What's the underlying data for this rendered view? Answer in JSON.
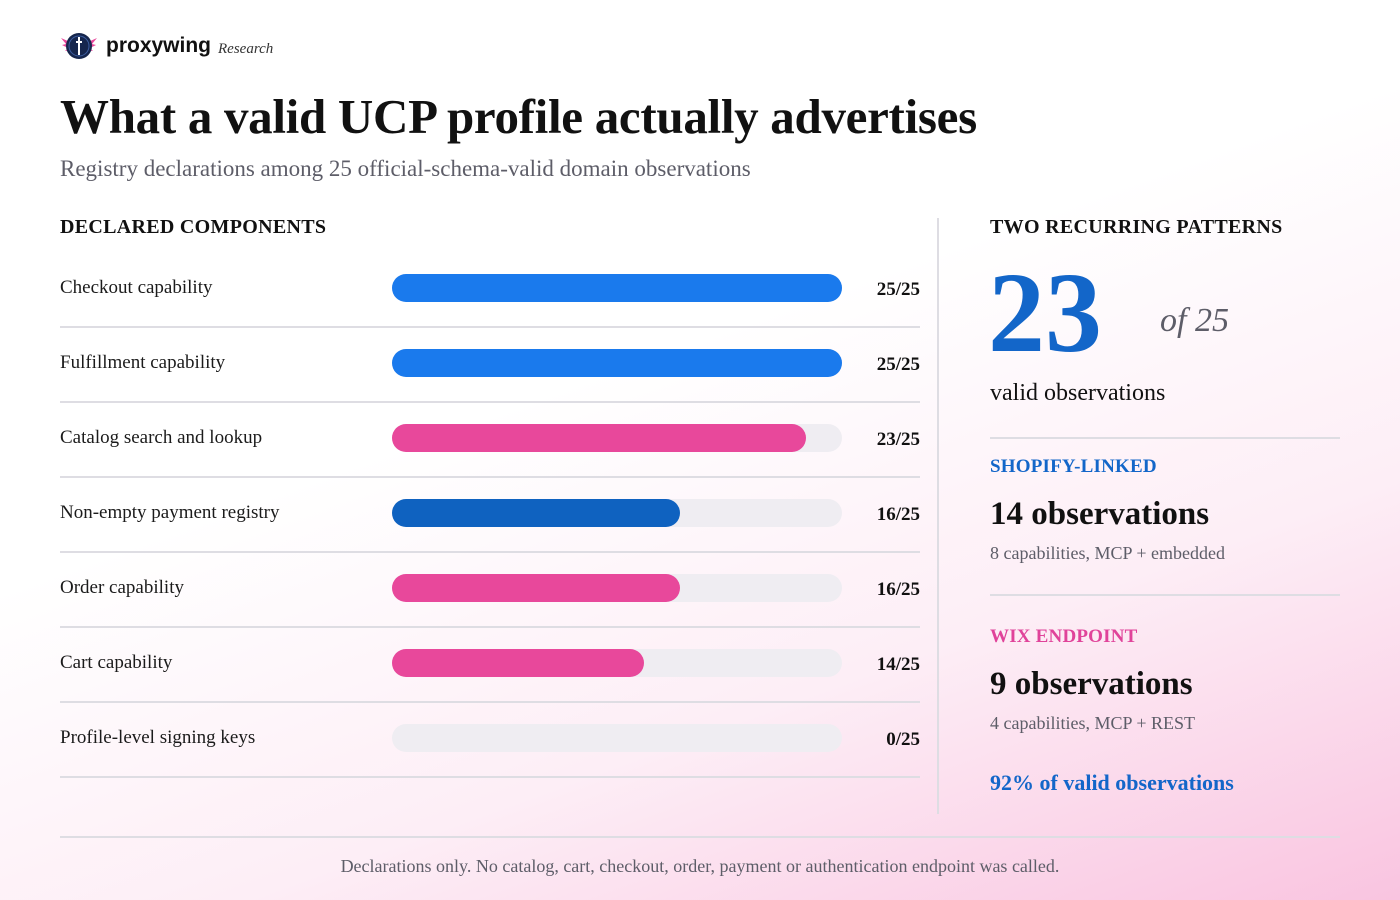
{
  "brand": {
    "name": "proxywing",
    "sub": "Research"
  },
  "colors": {
    "blue": "#1a7aed",
    "dark_blue": "#0f62c0",
    "pink": "#e8489b",
    "track": "#efedf2",
    "accent_blue": "#1366c9",
    "accent_pink": "#e0439a"
  },
  "left_heading": "DECLARED COMPONENTS",
  "right_panel": {
    "heading": "TWO RECURRING PATTERNS",
    "big_number": "23",
    "of_total": "of 25",
    "big_caption": "valid observations",
    "patterns": [
      {
        "label": "SHOPIFY-LINKED",
        "count": "14 observations",
        "detail": "8 capabilities, MCP + embedded",
        "color": "#1366c9"
      },
      {
        "label": "WIX ENDPOINT",
        "count": "9 observations",
        "detail": "4 capabilities, MCP + REST",
        "color": "#e0439a"
      }
    ],
    "summary": "92% of valid observations"
  },
  "chart_data": {
    "type": "bar",
    "orientation": "horizontal",
    "title": "What a valid UCP profile actually advertises",
    "subtitle": "Registry declarations among 25 official-schema-valid domain observations",
    "xlim": [
      0,
      25
    ],
    "categories": [
      "Checkout capability",
      "Fulfillment capability",
      "Catalog search and lookup",
      "Non-empty payment registry",
      "Order capability",
      "Cart capability",
      "Profile-level signing keys"
    ],
    "values": [
      25,
      25,
      23,
      16,
      16,
      14,
      0
    ],
    "total": 25,
    "value_labels": [
      "25/25",
      "25/25",
      "23/25",
      "16/25",
      "16/25",
      "14/25",
      "0/25"
    ],
    "bar_colors": [
      "#1a7aed",
      "#1a7aed",
      "#e8489b",
      "#0f62c0",
      "#e8489b",
      "#e8489b",
      "#1a7aed"
    ]
  },
  "footer": "Declarations only. No catalog, cart, checkout, order, payment or authentication endpoint was called."
}
